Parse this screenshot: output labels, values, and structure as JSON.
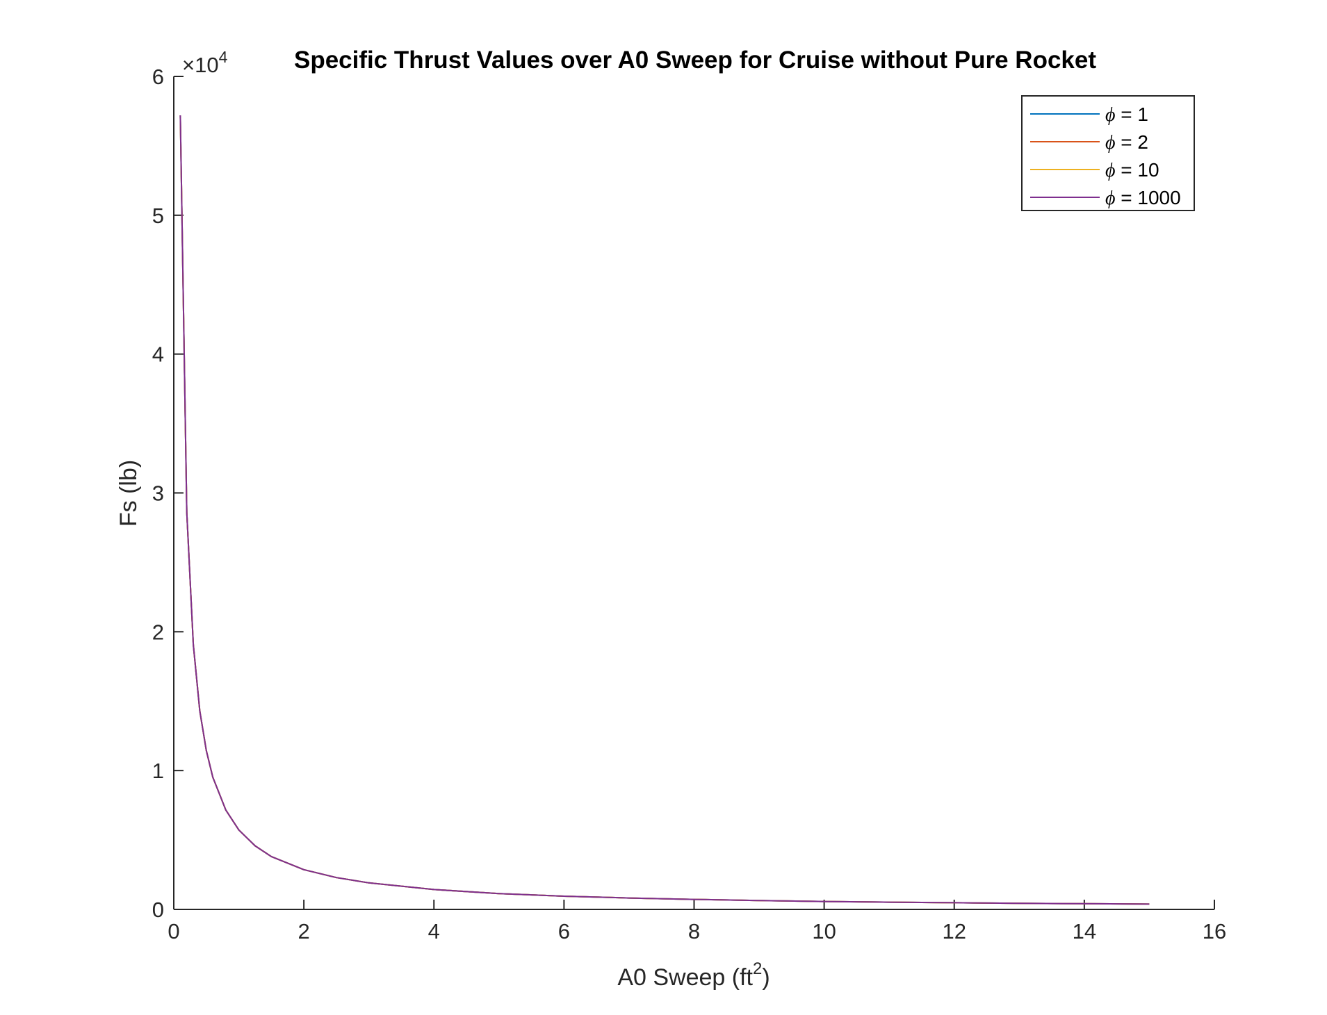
{
  "chart_data": {
    "type": "line",
    "title": "Specific Thrust Values over A0 Sweep for Cruise without Pure Rocket",
    "xlabel": "A0 Sweep (ft",
    "xlabel_sup": "2",
    "xlabel_end": ")",
    "ylabel": "Fs (lb)",
    "y_exponent_label": "×10",
    "y_exponent_power": "4",
    "xlim": [
      0,
      16
    ],
    "ylim": [
      0,
      60000
    ],
    "x_ticks": [
      0,
      2,
      4,
      6,
      8,
      10,
      12,
      14,
      16
    ],
    "y_ticks": [
      0,
      10000,
      20000,
      30000,
      40000,
      50000,
      60000
    ],
    "x_tick_labels": [
      "0",
      "2",
      "4",
      "6",
      "8",
      "10",
      "12",
      "14",
      "16"
    ],
    "y_tick_labels": [
      "0",
      "1",
      "2",
      "3",
      "4",
      "5",
      "6"
    ],
    "grid": false,
    "legend_position": "top-right",
    "legend_symbol": "ϕ",
    "x": [
      0.1,
      0.2,
      0.3,
      0.4,
      0.5,
      0.6,
      0.8,
      1.0,
      1.25,
      1.5,
      2.0,
      2.5,
      3.0,
      4.0,
      5.0,
      6.0,
      7.0,
      8.0,
      9.0,
      10.0,
      11.0,
      12.0,
      13.0,
      14.0,
      15.0
    ],
    "series": [
      {
        "name": "= 1",
        "color": "#0072BD",
        "values": [
          57200,
          28600,
          19070,
          14300,
          11440,
          9530,
          7150,
          5720,
          4580,
          3810,
          2860,
          2290,
          1910,
          1430,
          1140,
          950,
          820,
          720,
          640,
          570,
          520,
          480,
          440,
          410,
          380
        ]
      },
      {
        "name": "= 2",
        "color": "#D95319",
        "values": [
          57200,
          28600,
          19070,
          14300,
          11440,
          9530,
          7150,
          5720,
          4580,
          3810,
          2860,
          2290,
          1910,
          1430,
          1140,
          950,
          820,
          720,
          640,
          570,
          520,
          480,
          440,
          410,
          380
        ]
      },
      {
        "name": "= 10",
        "color": "#EDB120",
        "values": [
          57200,
          28600,
          19070,
          14300,
          11440,
          9530,
          7150,
          5720,
          4580,
          3810,
          2860,
          2290,
          1910,
          1430,
          1140,
          950,
          820,
          720,
          640,
          570,
          520,
          480,
          440,
          410,
          380
        ]
      },
      {
        "name": "= 1000",
        "color": "#7E2F8E",
        "values": [
          57200,
          28600,
          19070,
          14300,
          11440,
          9530,
          7150,
          5720,
          4580,
          3810,
          2860,
          2290,
          1910,
          1430,
          1140,
          950,
          820,
          720,
          640,
          570,
          520,
          480,
          440,
          410,
          380
        ]
      }
    ]
  }
}
